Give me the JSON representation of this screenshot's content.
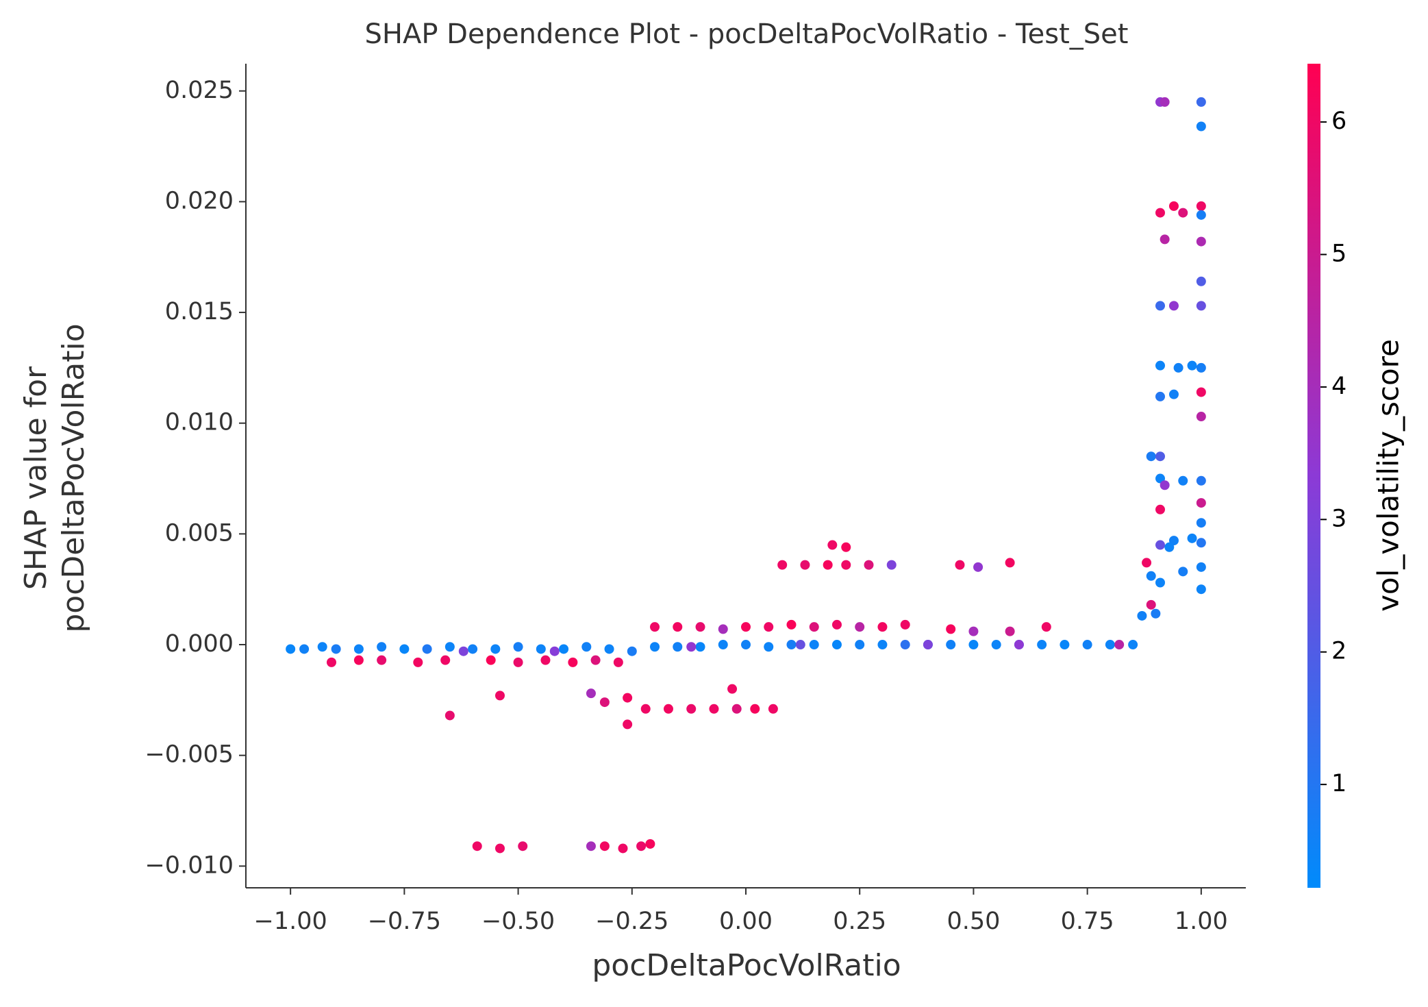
{
  "chart_data": {
    "type": "scatter",
    "title": "SHAP Dependence Plot - pocDeltaPocVolRatio - Test_Set",
    "xlabel": "pocDeltaPocVolRatio",
    "ylabel": [
      "SHAP value for",
      "pocDeltaPocVolRatio"
    ],
    "x": [
      -1.0,
      -0.97,
      -0.93,
      -0.9,
      -0.85,
      -0.8,
      -0.75,
      -0.7,
      -0.65,
      -0.6,
      -0.55,
      -0.5,
      -0.45,
      -0.4,
      -0.35,
      -0.3,
      -0.25,
      -0.2,
      -0.15,
      -0.1,
      -0.05,
      0.0,
      0.05,
      0.1,
      0.15,
      0.2,
      0.25,
      0.3,
      0.35,
      0.4,
      0.45,
      0.5,
      0.55,
      0.6,
      0.65,
      0.7,
      0.75,
      0.8,
      0.85,
      -0.62,
      -0.42,
      -0.12,
      0.12,
      0.4,
      0.6,
      0.82,
      -0.91,
      -0.85,
      -0.8,
      -0.72,
      -0.66,
      -0.56,
      -0.5,
      -0.44,
      -0.38,
      -0.33,
      -0.28,
      -0.2,
      -0.15,
      -0.1,
      -0.05,
      0.0,
      0.05,
      0.1,
      0.15,
      0.2,
      0.25,
      0.3,
      0.35,
      0.45,
      0.5,
      0.58,
      0.66,
      0.08,
      0.13,
      0.18,
      0.22,
      0.27,
      0.32,
      0.47,
      0.51,
      0.58,
      0.19,
      0.22,
      -0.22,
      -0.17,
      -0.12,
      -0.07,
      -0.02,
      0.02,
      0.06,
      -0.26,
      -0.26,
      -0.54,
      -0.65,
      -0.34,
      -0.31,
      -0.03,
      -0.59,
      -0.54,
      -0.49,
      -0.34,
      -0.31,
      -0.27,
      -0.23,
      -0.21,
      0.91,
      0.92,
      1.0,
      1.0,
      0.91,
      0.94,
      0.96,
      1.0,
      1.0,
      0.92,
      1.0,
      1.0,
      0.91,
      0.94,
      1.0,
      0.91,
      0.95,
      0.98,
      1.0,
      0.91,
      0.94,
      1.0,
      1.0,
      0.89,
      0.91,
      0.91,
      0.92,
      0.96,
      1.0,
      0.91,
      1.0,
      1.0,
      0.91,
      0.94,
      0.98,
      1.0,
      0.93,
      0.96,
      1.0,
      1.0,
      0.89,
      0.91,
      0.88,
      0.89,
      0.9,
      0.87
    ],
    "values": [
      -0.0002,
      -0.0002,
      -0.0001,
      -0.0002,
      -0.0002,
      -0.0001,
      -0.0002,
      -0.0002,
      -0.0001,
      -0.0002,
      -0.0002,
      -0.0001,
      -0.0002,
      -0.0002,
      -0.0001,
      -0.0002,
      -0.0003,
      -0.0001,
      -0.0001,
      -0.0001,
      0.0,
      0.0,
      -0.0001,
      0.0,
      0.0,
      0.0,
      0.0,
      0.0,
      0.0,
      0.0,
      0.0,
      0.0,
      0.0,
      0.0,
      0.0,
      0.0,
      0.0,
      0.0,
      0.0,
      -0.0003,
      -0.0003,
      -0.0001,
      0.0,
      0.0,
      0.0,
      0.0,
      -0.0008,
      -0.0007,
      -0.0007,
      -0.0008,
      -0.0007,
      -0.0007,
      -0.0008,
      -0.0007,
      -0.0008,
      -0.0007,
      -0.0008,
      0.0008,
      0.0008,
      0.0008,
      0.0007,
      0.0008,
      0.0008,
      0.0009,
      0.0008,
      0.0009,
      0.0008,
      0.0008,
      0.0009,
      0.0007,
      0.0006,
      0.0006,
      0.0008,
      0.0036,
      0.0036,
      0.0036,
      0.0036,
      0.0036,
      0.0036,
      0.0036,
      0.0035,
      0.0037,
      0.0045,
      0.0044,
      -0.0029,
      -0.0029,
      -0.0029,
      -0.0029,
      -0.0029,
      -0.0029,
      -0.0029,
      -0.0036,
      -0.0024,
      -0.0023,
      -0.0032,
      -0.0022,
      -0.0026,
      -0.002,
      -0.0091,
      -0.0092,
      -0.0091,
      -0.0091,
      -0.0091,
      -0.0092,
      -0.0091,
      -0.009,
      0.0245,
      0.0245,
      0.0245,
      0.0234,
      0.0195,
      0.0198,
      0.0195,
      0.0198,
      0.0194,
      0.0183,
      0.0182,
      0.0164,
      0.0153,
      0.0153,
      0.0153,
      0.0126,
      0.0125,
      0.0126,
      0.0125,
      0.0112,
      0.0113,
      0.0114,
      0.0103,
      0.0085,
      0.0085,
      0.0075,
      0.0072,
      0.0074,
      0.0074,
      0.0061,
      0.0064,
      0.0055,
      0.0045,
      0.0047,
      0.0048,
      0.0046,
      0.0044,
      0.0033,
      0.0035,
      0.0025,
      0.0031,
      0.0028,
      0.0037,
      0.0018,
      0.0014,
      0.0013
    ],
    "color_values": [
      0.4,
      0.6,
      0.5,
      0.8,
      0.5,
      0.6,
      0.4,
      0.9,
      0.5,
      0.6,
      0.5,
      0.7,
      0.5,
      0.4,
      0.6,
      0.5,
      0.8,
      0.5,
      0.6,
      0.4,
      0.5,
      0.6,
      0.5,
      0.7,
      0.5,
      0.4,
      0.6,
      0.5,
      1.2,
      0.5,
      0.6,
      0.4,
      0.5,
      0.7,
      0.5,
      0.4,
      0.6,
      0.5,
      0.5,
      3.0,
      3.2,
      3.5,
      2.5,
      3.0,
      3.4,
      4.5,
      6.0,
      6.2,
      5.8,
      6.1,
      6.0,
      6.3,
      5.9,
      6.0,
      6.2,
      5.5,
      6.0,
      6.0,
      6.1,
      5.8,
      4.0,
      6.2,
      6.0,
      6.3,
      5.5,
      6.0,
      4.5,
      6.1,
      6.0,
      6.2,
      4.0,
      5.0,
      6.0,
      6.0,
      5.8,
      6.2,
      6.0,
      5.5,
      3.0,
      6.0,
      3.5,
      6.1,
      6.0,
      6.2,
      6.0,
      6.1,
      5.9,
      6.0,
      5.5,
      6.2,
      6.0,
      6.0,
      6.1,
      6.0,
      5.8,
      4.0,
      5.5,
      6.0,
      6.0,
      6.0,
      5.8,
      4.0,
      6.1,
      6.0,
      5.9,
      6.2,
      3.5,
      4.0,
      1.5,
      0.6,
      6.0,
      6.2,
      5.5,
      6.0,
      0.7,
      4.5,
      4.2,
      2.0,
      1.5,
      3.5,
      2.5,
      0.5,
      0.6,
      0.5,
      0.7,
      1.0,
      0.6,
      6.0,
      4.5,
      0.8,
      2.0,
      0.5,
      3.5,
      0.6,
      1.0,
      6.0,
      5.0,
      0.7,
      2.5,
      0.6,
      0.5,
      1.0,
      0.5,
      0.7,
      0.6,
      0.5,
      0.6,
      0.5,
      6.0,
      5.5,
      0.8,
      0.6
    ],
    "colormap": [
      "#008bfb",
      "#8c3ad6",
      "#ff0052"
    ],
    "xlim": [
      -1.098,
      1.098
    ],
    "ylim": [
      -0.01098,
      0.02623
    ],
    "xticks": [
      {
        "value": -1.0,
        "label": "−1.00"
      },
      {
        "value": -0.75,
        "label": "−0.75"
      },
      {
        "value": -0.5,
        "label": "−0.50"
      },
      {
        "value": -0.25,
        "label": "−0.25"
      },
      {
        "value": 0.0,
        "label": "0.00"
      },
      {
        "value": 0.25,
        "label": "0.25"
      },
      {
        "value": 0.5,
        "label": "0.50"
      },
      {
        "value": 0.75,
        "label": "0.75"
      },
      {
        "value": 1.0,
        "label": "1.00"
      }
    ],
    "yticks": [
      {
        "value": -0.01,
        "label": "−0.010"
      },
      {
        "value": -0.005,
        "label": "−0.005"
      },
      {
        "value": 0.0,
        "label": "0.000"
      },
      {
        "value": 0.005,
        "label": "0.005"
      },
      {
        "value": 0.01,
        "label": "0.010"
      },
      {
        "value": 0.015,
        "label": "0.015"
      },
      {
        "value": 0.02,
        "label": "0.020"
      },
      {
        "value": 0.025,
        "label": "0.025"
      }
    ],
    "colorbar": {
      "label": "vol_volatility_score",
      "lim": [
        0.22,
        6.44
      ],
      "ticks": [
        1,
        2,
        3,
        4,
        5,
        6
      ]
    }
  }
}
